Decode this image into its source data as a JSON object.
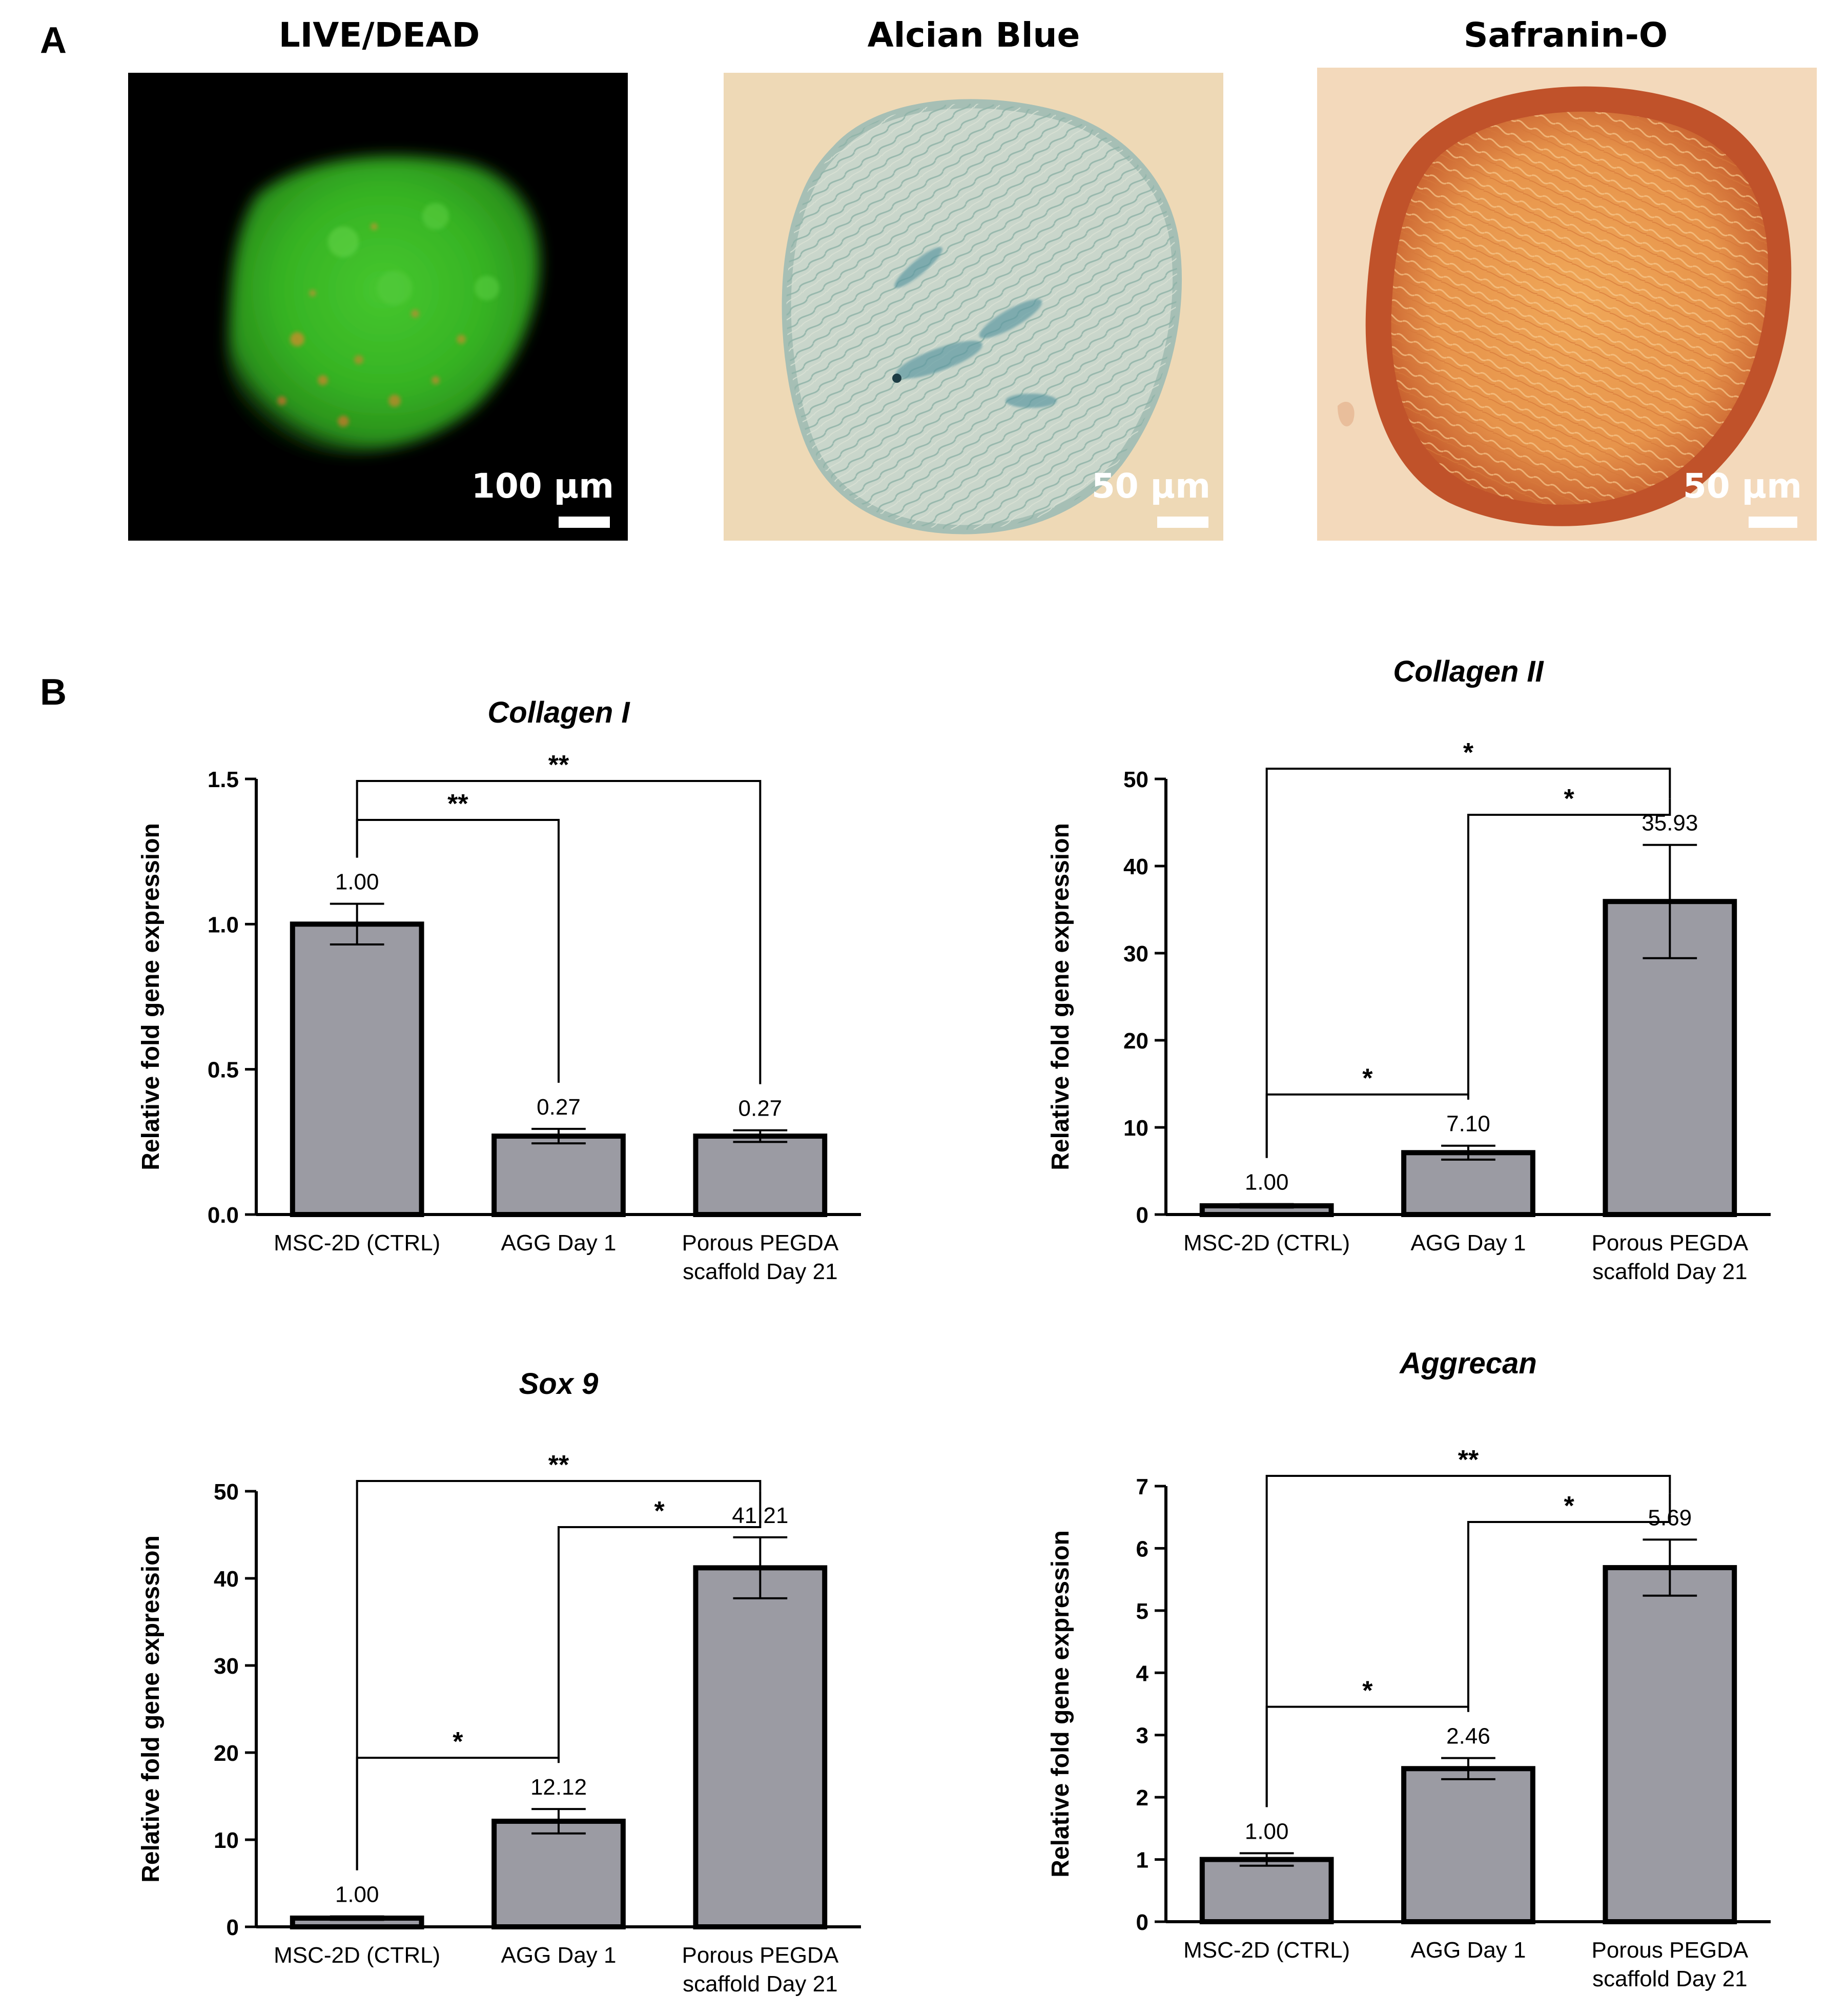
{
  "panel_a": {
    "letter": "A",
    "images": [
      {
        "title": "LIVE/DEAD",
        "scale_label": "100 µm",
        "stain": "fluorescence"
      },
      {
        "title": "Alcian Blue",
        "scale_label": "50 µm",
        "stain": "alcian-blue"
      },
      {
        "title": "Safranin-O",
        "scale_label": "50 µm",
        "stain": "safranin-o"
      }
    ]
  },
  "panel_b": {
    "letter": "B"
  },
  "colors": {
    "bar_fill": "#9b9ba3",
    "bar_stroke": "#000000",
    "fluor_bg": "#000000",
    "fluor_green": "#3fbf2a",
    "alcian_bg": "#eed9b6",
    "alcian_tissue": "#bfd0c6",
    "safranin_bg": "#f3d9bb",
    "safranin_tissue": "#e59a4c",
    "safranin_rim": "#c0522a"
  },
  "chart_data": [
    {
      "type": "bar",
      "title": "Collagen I",
      "ylabel": "Relative fold gene expression",
      "categories": [
        [
          "MSC-2D (CTRL)"
        ],
        [
          "AGG Day 1"
        ],
        [
          "Porous PEGDA",
          "scaffold Day 21"
        ]
      ],
      "values": [
        1.0,
        0.27,
        0.27
      ],
      "errors": [
        0.07,
        0.025,
        0.02
      ],
      "value_labels": [
        "1.00",
        "0.27",
        "0.27"
      ],
      "ylim": [
        0,
        1.5
      ],
      "yticks": [
        0.0,
        0.5,
        1.0,
        1.5
      ],
      "ytick_labels": [
        "0.0",
        "0.5",
        "1.0",
        "1.5"
      ],
      "significance": [
        {
          "from": 0,
          "to": 1,
          "label": "**",
          "level": 1
        },
        {
          "from": 0,
          "to": 2,
          "label": "**",
          "level": 2
        }
      ]
    },
    {
      "type": "bar",
      "title": "Collagen II",
      "ylabel": "Relative fold gene expression",
      "categories": [
        [
          "MSC-2D (CTRL)"
        ],
        [
          "AGG Day 1"
        ],
        [
          "Porous PEGDA",
          "scaffold Day 21"
        ]
      ],
      "values": [
        1.0,
        7.1,
        35.93
      ],
      "errors": [
        0.2,
        0.8,
        6.5
      ],
      "value_labels": [
        "1.00",
        "7.10",
        "35.93"
      ],
      "ylim": [
        0,
        50
      ],
      "yticks": [
        0,
        10,
        20,
        30,
        40,
        50
      ],
      "ytick_labels": [
        "0",
        "10",
        "20",
        "30",
        "40",
        "50"
      ],
      "significance": [
        {
          "from": 0,
          "to": 1,
          "label": "*",
          "level": 1
        },
        {
          "from": 1,
          "to": 2,
          "label": "*",
          "level": 1
        },
        {
          "from": 0,
          "to": 2,
          "label": "*",
          "level": 2
        }
      ]
    },
    {
      "type": "bar",
      "title": "Sox 9",
      "ylabel": "Relative fold gene expression",
      "categories": [
        [
          "MSC-2D (CTRL)"
        ],
        [
          "AGG Day 1"
        ],
        [
          "Porous PEGDA",
          "scaffold Day 21"
        ]
      ],
      "values": [
        1.0,
        12.12,
        41.21
      ],
      "errors": [
        0.2,
        1.4,
        3.5
      ],
      "value_labels": [
        "1.00",
        "12.12",
        "41.21"
      ],
      "ylim": [
        0,
        50
      ],
      "yticks": [
        0,
        10,
        20,
        30,
        40,
        50
      ],
      "ytick_labels": [
        "0",
        "10",
        "20",
        "30",
        "40",
        "50"
      ],
      "significance": [
        {
          "from": 0,
          "to": 1,
          "label": "*",
          "level": 1
        },
        {
          "from": 1,
          "to": 2,
          "label": "*",
          "level": 1
        },
        {
          "from": 0,
          "to": 2,
          "label": "**",
          "level": 2
        }
      ]
    },
    {
      "type": "bar",
      "title": "Aggrecan",
      "ylabel": "Relative fold gene expression",
      "categories": [
        [
          "MSC-2D (CTRL)"
        ],
        [
          "AGG Day 1"
        ],
        [
          "Porous PEGDA",
          "scaffold Day 21"
        ]
      ],
      "values": [
        1.0,
        2.46,
        5.69
      ],
      "errors": [
        0.1,
        0.17,
        0.45
      ],
      "value_labels": [
        "1.00",
        "2.46",
        "5.69"
      ],
      "ylim": [
        0,
        7
      ],
      "yticks": [
        0,
        1,
        2,
        3,
        4,
        5,
        6,
        7
      ],
      "ytick_labels": [
        "0",
        "1",
        "2",
        "3",
        "4",
        "5",
        "6",
        "7"
      ],
      "significance": [
        {
          "from": 0,
          "to": 1,
          "label": "*",
          "level": 1
        },
        {
          "from": 1,
          "to": 2,
          "label": "*",
          "level": 1
        },
        {
          "from": 0,
          "to": 2,
          "label": "**",
          "level": 2
        }
      ]
    }
  ]
}
